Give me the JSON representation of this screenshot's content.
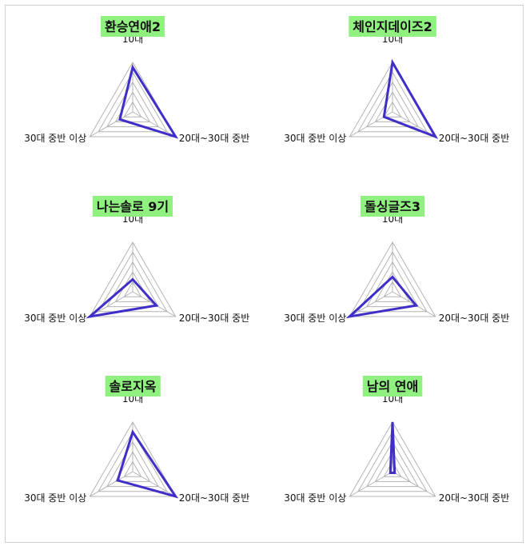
{
  "chart_data": [
    {
      "type": "radar",
      "title": "환승연애2",
      "axes": [
        "10대",
        "20대~30대 중반",
        "30대 중반 이상"
      ],
      "values": [
        0.9,
        1.0,
        0.3
      ],
      "rlim": [
        0,
        1
      ],
      "rings": 5
    },
    {
      "type": "radar",
      "title": "체인지데이즈2",
      "axes": [
        "10대",
        "20대~30대 중반",
        "30대 중반 이상"
      ],
      "values": [
        1.0,
        1.0,
        0.2
      ],
      "rlim": [
        0,
        1
      ],
      "rings": 5
    },
    {
      "type": "radar",
      "title": "나는솔로 9기",
      "axes": [
        "10대",
        "20대~30대 중반",
        "30대 중반 이상"
      ],
      "values": [
        0.25,
        0.55,
        1.0
      ],
      "rlim": [
        0,
        1
      ],
      "rings": 5
    },
    {
      "type": "radar",
      "title": "돌싱글즈3",
      "axes": [
        "10대",
        "20대~30대 중반",
        "30대 중반 이상"
      ],
      "values": [
        0.3,
        0.55,
        1.0
      ],
      "rlim": [
        0,
        1
      ],
      "rings": 5
    },
    {
      "type": "radar",
      "title": "솔로지옥",
      "axes": [
        "10대",
        "20대~30대 중반",
        "30대 중반 이상"
      ],
      "values": [
        0.8,
        1.0,
        0.35
      ],
      "rlim": [
        0,
        1
      ],
      "rings": 5
    },
    {
      "type": "radar",
      "title": "남의 연애",
      "axes": [
        "10대",
        "20대~30대 중반",
        "30대 중반 이상"
      ],
      "values": [
        1.0,
        0.05,
        0.05
      ],
      "rlim": [
        0,
        1
      ],
      "rings": 5
    }
  ]
}
